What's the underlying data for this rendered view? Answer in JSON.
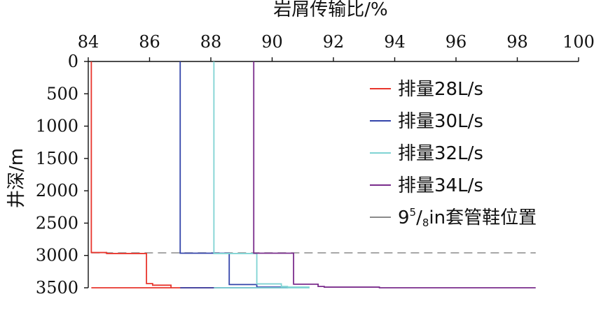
{
  "chart_data": {
    "type": "line",
    "xlabel": "岩屑传输比/%",
    "ylabel": "井深/m",
    "xlim": [
      84,
      100
    ],
    "ylim": [
      0,
      3500
    ],
    "y_inverted": true,
    "x_axis_position": "top",
    "x_ticks": [
      "84",
      "86",
      "88",
      "90",
      "92",
      "94",
      "96",
      "98",
      "100"
    ],
    "y_ticks": [
      "0",
      "500",
      "1000",
      "1500",
      "2000",
      "2500",
      "3000",
      "3500"
    ],
    "grid": false,
    "legend_position": "right",
    "series": [
      {
        "name": "排量28L/s",
        "color": "#e8352c",
        "x": [
          84.1,
          84.1,
          84.6,
          85.9,
          85.9,
          86.1,
          86.1,
          86.7,
          86.7,
          88.3,
          84.1
        ],
        "y": [
          0,
          2935,
          2955,
          2970,
          3410,
          3435,
          3450,
          3460,
          3485,
          3500,
          3500
        ]
      },
      {
        "name": "排量30L/s",
        "color": "#3344aa",
        "x": [
          87.0,
          87.0,
          88.6,
          88.6,
          89.5,
          89.5,
          90.5,
          87.0
        ],
        "y": [
          0,
          2950,
          2965,
          3440,
          3450,
          3470,
          3490,
          3500
        ]
      },
      {
        "name": "排量32L/s",
        "color": "#7fd3d3",
        "x": [
          88.1,
          88.1,
          89.5,
          89.5,
          90.3,
          90.5,
          91.2,
          88.1
        ],
        "y": [
          0,
          2955,
          2970,
          3425,
          3440,
          3480,
          3490,
          3500
        ]
      },
      {
        "name": "排量34L/s",
        "color": "#7a2c8c",
        "x": [
          89.4,
          89.4,
          90.7,
          90.7,
          91.5,
          91.7,
          93.5,
          98.6
        ],
        "y": [
          0,
          2940,
          2965,
          3425,
          3445,
          3480,
          3490,
          3500
        ]
      }
    ],
    "reference_line": {
      "name": "95/8in套管鞋位置",
      "name_base": "9",
      "name_sup": "5",
      "name_slash": "/",
      "name_sub": "8",
      "name_rest": "in套管鞋位置",
      "y": 2960,
      "x_range": [
        84.1,
        98.6
      ],
      "color": "#8a8a8a",
      "style": "dashed"
    }
  }
}
